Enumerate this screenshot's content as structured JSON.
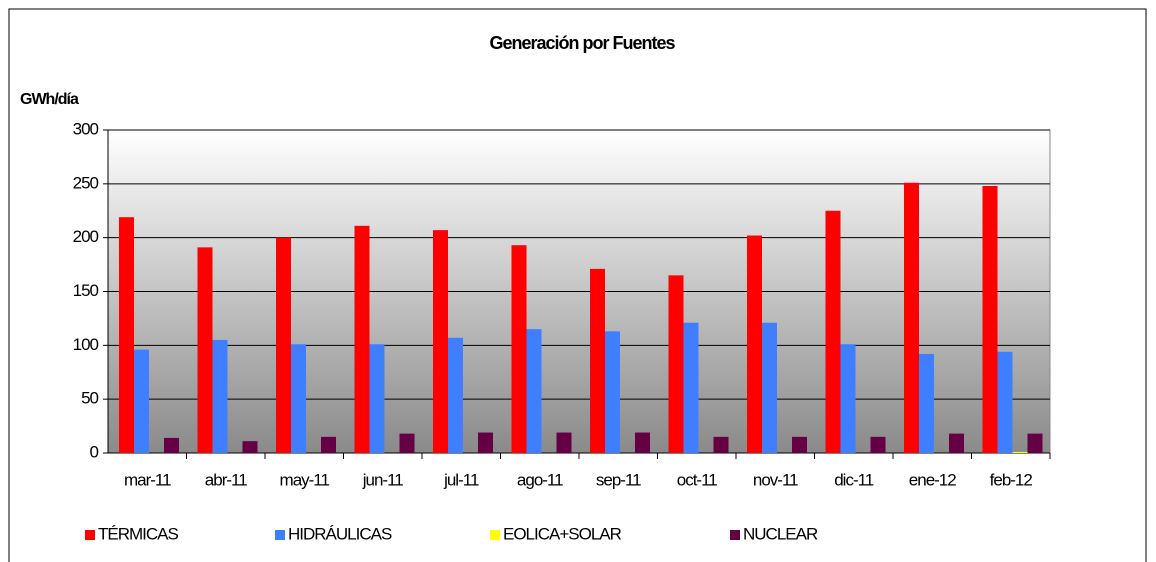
{
  "chart_data": {
    "type": "bar",
    "title": "Generación por Fuentes",
    "y_label": "GWh/día",
    "categories": [
      "mar-11",
      "abr-11",
      "may-11",
      "jun-11",
      "jul-11",
      "ago-11",
      "sep-11",
      "oct-11",
      "nov-11",
      "dic-11",
      "ene-12",
      "feb-12"
    ],
    "series": [
      {
        "name": "TÉRMICAS",
        "color": "#ff0000",
        "values": [
          219,
          191,
          200,
          211,
          207,
          193,
          171,
          165,
          202,
          225,
          251,
          248
        ]
      },
      {
        "name": "HIDRÁULICAS",
        "color": "#3f7fff",
        "values": [
          96,
          105,
          101,
          101,
          107,
          115,
          113,
          121,
          121,
          101,
          92,
          94
        ]
      },
      {
        "name": "EOLICA+SOLAR",
        "color": "#ffff00",
        "values": [
          0,
          0,
          0,
          0,
          0,
          0,
          0,
          0,
          0,
          0,
          0,
          1
        ]
      },
      {
        "name": "NUCLEAR",
        "color": "#660044",
        "values": [
          14,
          11,
          15,
          18,
          19,
          19,
          19,
          15,
          15,
          15,
          18,
          18
        ]
      }
    ],
    "ylim": [
      0,
      300
    ],
    "yticks": [
      0,
      50,
      100,
      150,
      200,
      250,
      300
    ],
    "grid": true,
    "legend": "bottom"
  }
}
